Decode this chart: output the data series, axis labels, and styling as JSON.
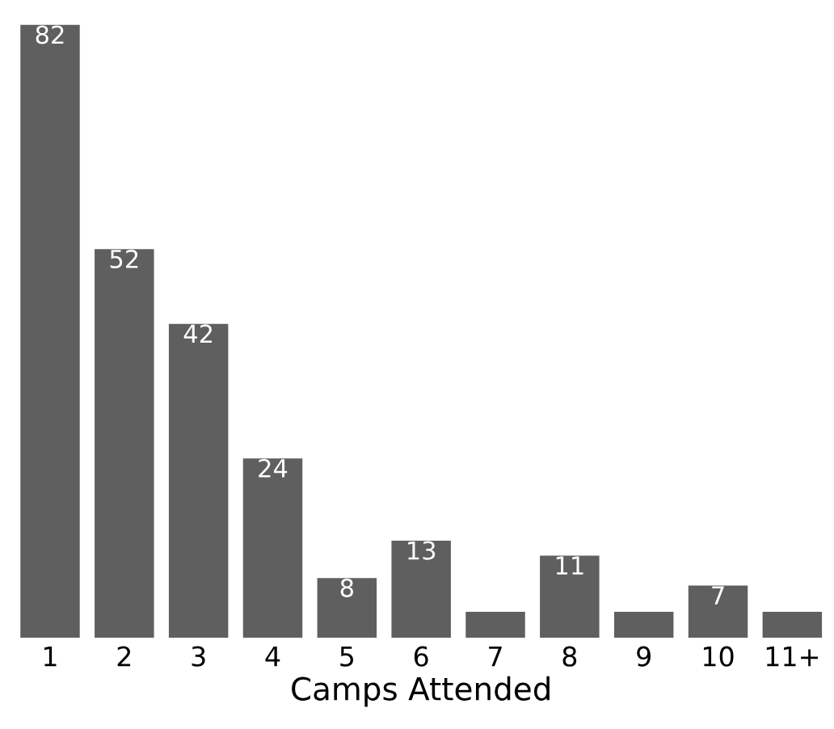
{
  "chart_data": {
    "type": "bar",
    "xlabel": "Camps Attended",
    "categories": [
      "1",
      "2",
      "3",
      "4",
      "5",
      "6",
      "7",
      "8",
      "9",
      "10",
      "11+"
    ],
    "values": [
      82,
      52,
      42,
      24,
      8,
      13,
      3.5,
      11,
      3.5,
      7,
      3.5
    ],
    "value_labels": [
      "82",
      "52",
      "42",
      "24",
      "8",
      "13",
      null,
      "11",
      null,
      "7",
      null
    ],
    "color": "#5f5f5f",
    "grid": false
  }
}
